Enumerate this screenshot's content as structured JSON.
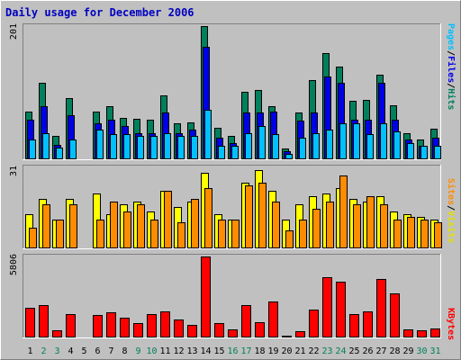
{
  "title": "Daily usage for December 2006",
  "colors": {
    "background": "#c0c0c0",
    "panel": "#c0c0c0",
    "hits": "#00805c",
    "files": "#0000e6",
    "pages": "#00c0ff",
    "visits": "#ffff00",
    "sites": "#ff8c00",
    "kbytes": "#ff0000",
    "title": "#0000c0",
    "weekend": "#00805c",
    "weekday": "#000000"
  },
  "side_labels": {
    "top": [
      {
        "text": "Pages",
        "color": "#00c0ff"
      },
      {
        "text": "/",
        "color": "#000000"
      },
      {
        "text": "Files",
        "color": "#0000e6"
      },
      {
        "text": "/",
        "color": "#000000"
      },
      {
        "text": "Hits",
        "color": "#00805c"
      }
    ],
    "middle": [
      {
        "text": "Sites",
        "color": "#ff8c00"
      },
      {
        "text": "/",
        "color": "#000000"
      },
      {
        "text": "Visits",
        "color": "#e0e000"
      }
    ],
    "bottom": [
      {
        "text": "KBytes",
        "color": "#ff0000"
      }
    ]
  },
  "chart_data": [
    {
      "type": "bar",
      "title": "Daily usage for December 2006",
      "max_label": "201",
      "ylim": [
        0,
        201
      ],
      "categories": [
        "1",
        "2",
        "3",
        "4",
        "5",
        "6",
        "7",
        "8",
        "9",
        "10",
        "11",
        "12",
        "13",
        "14",
        "15",
        "16",
        "17",
        "18",
        "19",
        "20",
        "21",
        "22",
        "23",
        "24",
        "25",
        "26",
        "27",
        "28",
        "29",
        "30",
        "31"
      ],
      "weekend_days": [
        "2",
        "3",
        "9",
        "10",
        "16",
        "17",
        "23",
        "24",
        "30",
        "31"
      ],
      "series": [
        {
          "name": "Hits",
          "values": [
            72,
            115,
            35,
            92,
            0,
            72,
            80,
            62,
            61,
            60,
            97,
            55,
            56,
            201,
            47,
            35,
            102,
            104,
            80,
            16,
            70,
            120,
            160,
            140,
            88,
            90,
            127,
            82,
            40,
            30,
            46
          ]
        },
        {
          "name": "Files",
          "values": [
            60,
            80,
            22,
            67,
            0,
            55,
            60,
            50,
            40,
            40,
            70,
            40,
            45,
            170,
            32,
            25,
            70,
            70,
            72,
            12,
            58,
            70,
            125,
            115,
            60,
            60,
            115,
            60,
            30,
            20,
            33
          ]
        },
        {
          "name": "Pages",
          "values": [
            30,
            40,
            18,
            30,
            0,
            45,
            38,
            38,
            35,
            35,
            40,
            35,
            35,
            75,
            20,
            20,
            40,
            50,
            38,
            8,
            32,
            40,
            45,
            55,
            55,
            38,
            55,
            42,
            24,
            20,
            20
          ]
        }
      ]
    },
    {
      "type": "bar",
      "max_label": "31",
      "ylim": [
        0,
        31
      ],
      "categories": [
        "1",
        "2",
        "3",
        "4",
        "5",
        "6",
        "7",
        "8",
        "9",
        "10",
        "11",
        "12",
        "13",
        "14",
        "15",
        "16",
        "17",
        "18",
        "19",
        "20",
        "21",
        "22",
        "23",
        "24",
        "25",
        "26",
        "27",
        "28",
        "29",
        "30",
        "31"
      ],
      "series": [
        {
          "name": "Visits",
          "values": [
            13,
            19,
            11,
            19,
            0,
            21,
            13,
            17,
            18,
            14,
            22,
            16,
            18,
            29,
            13,
            11,
            25,
            30,
            22,
            11,
            17,
            20,
            21,
            23,
            19,
            18,
            20,
            14,
            13,
            12,
            11
          ]
        },
        {
          "name": "Sites",
          "values": [
            8,
            17,
            11,
            17,
            0,
            11,
            18,
            14,
            17,
            11,
            22,
            10,
            19,
            23,
            11,
            11,
            24,
            25,
            18,
            7,
            11,
            15,
            18,
            28,
            17,
            20,
            17,
            11,
            12,
            11,
            10
          ]
        }
      ]
    },
    {
      "type": "bar",
      "max_label": "5806",
      "ylim": [
        0,
        5806
      ],
      "categories": [
        "1",
        "2",
        "3",
        "4",
        "5",
        "6",
        "7",
        "8",
        "9",
        "10",
        "11",
        "12",
        "13",
        "14",
        "15",
        "16",
        "17",
        "18",
        "19",
        "20",
        "21",
        "22",
        "23",
        "24",
        "25",
        "26",
        "27",
        "28",
        "29",
        "30",
        "31"
      ],
      "series": [
        {
          "name": "KBytes",
          "values": [
            2100,
            2300,
            500,
            1700,
            0,
            1600,
            1800,
            1400,
            1000,
            1700,
            1900,
            1300,
            900,
            5800,
            1000,
            550,
            2300,
            1100,
            2600,
            120,
            450,
            2000,
            4300,
            4000,
            1700,
            1900,
            4200,
            3150,
            600,
            500,
            620
          ]
        }
      ]
    }
  ]
}
